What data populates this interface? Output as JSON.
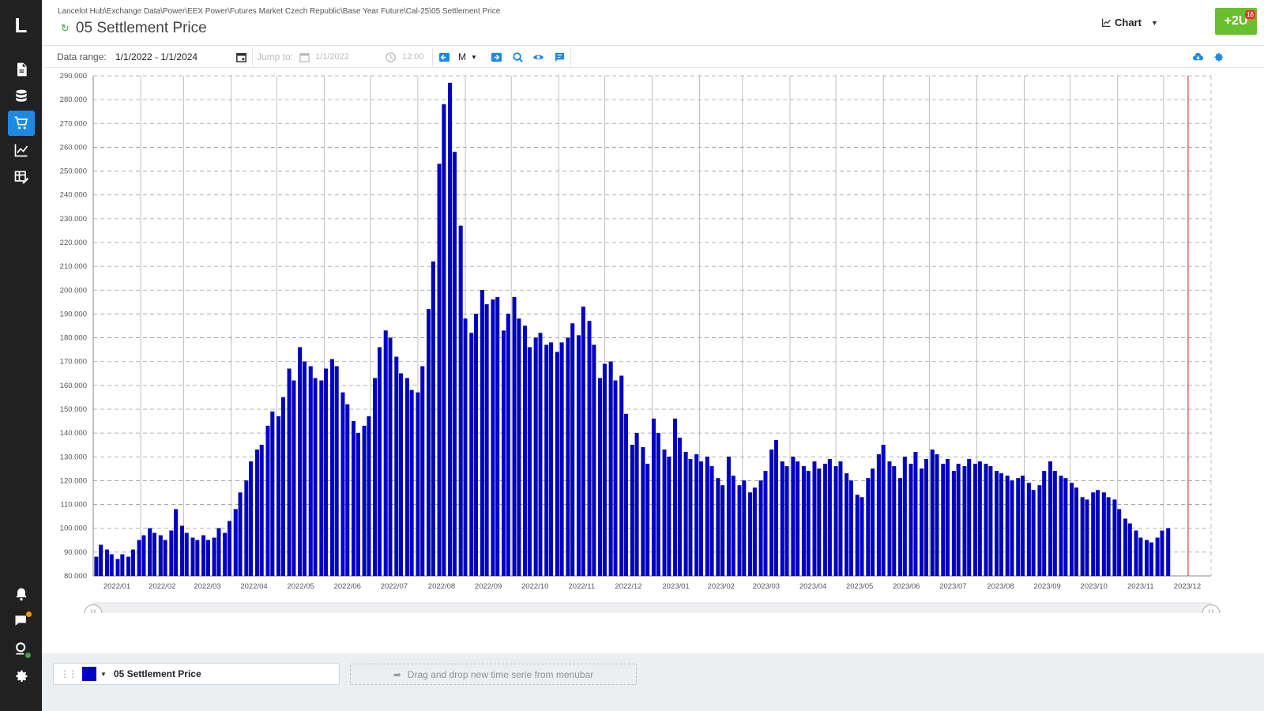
{
  "app": {
    "logo_letter": "L"
  },
  "nav": {
    "items": [
      {
        "icon": "document-icon"
      },
      {
        "icon": "database-icon"
      },
      {
        "icon": "cart-icon",
        "active": true
      },
      {
        "icon": "line-chart-icon"
      },
      {
        "icon": "table-edit-icon"
      }
    ],
    "bottom_items": [
      {
        "icon": "bell-icon"
      },
      {
        "icon": "feedback-icon",
        "badge_color": "#ff9800"
      },
      {
        "icon": "user-status-icon",
        "badge_color": "#43a047"
      },
      {
        "icon": "settings-icon"
      }
    ]
  },
  "header": {
    "breadcrumb": "Lancelot Hub\\Exchange Data\\Power\\EEX Power\\Futures Market Czech Republic\\Base Year Future\\Cal-25\\05 Settlement Price",
    "title": "05 Settlement Price",
    "view_mode": "Chart",
    "action_button": "+2U",
    "action_badge": "16",
    "accent": "#6abf2e"
  },
  "toolbar": {
    "data_range_label": "Data range:",
    "data_range_value": "1/1/2022 - 1/1/2024",
    "jump_to_label": "Jump to:",
    "jump_date_placeholder": "1/1/2022",
    "jump_time_placeholder": "12:00",
    "period": "M",
    "accent": "#1e88e5"
  },
  "chart_data": {
    "type": "bar",
    "title": "",
    "xlabel": "",
    "ylabel": "",
    "series": [
      {
        "name": "05 Settlement Price",
        "color": "#0000c8"
      }
    ],
    "x_range": [
      "2022-01-01",
      "2024-01-01"
    ],
    "ylim": [
      80,
      290
    ],
    "y_ticks": [
      "80.000",
      "90.000",
      "100.000",
      "110.000",
      "120.000",
      "130.000",
      "140.000",
      "150.000",
      "160.000",
      "170.000",
      "180.000",
      "190.000",
      "200.000",
      "210.000",
      "220.000",
      "230.000",
      "240.000",
      "250.000",
      "260.000",
      "270.000",
      "280.000",
      "290.000"
    ],
    "x_ticks": [
      "2022/01",
      "2022/02",
      "2022/03",
      "2022/04",
      "2022/05",
      "2022/06",
      "2022/07",
      "2022/08",
      "2022/09",
      "2022/10",
      "2022/11",
      "2022/12",
      "2023/01",
      "2023/02",
      "2023/03",
      "2023/04",
      "2023/05",
      "2023/06",
      "2023/07",
      "2023/08",
      "2023/09",
      "2023/10",
      "2023/11",
      "2023/12"
    ],
    "grid": true,
    "marker_line_color": "#e53935",
    "points": [
      [
        "2022-01-03",
        88
      ],
      [
        "2022-01-06",
        93
      ],
      [
        "2022-01-10",
        91
      ],
      [
        "2022-01-13",
        89
      ],
      [
        "2022-01-17",
        87
      ],
      [
        "2022-01-20",
        89
      ],
      [
        "2022-01-24",
        88
      ],
      [
        "2022-01-27",
        91
      ],
      [
        "2022-01-31",
        95
      ],
      [
        "2022-02-03",
        97
      ],
      [
        "2022-02-07",
        100
      ],
      [
        "2022-02-10",
        98
      ],
      [
        "2022-02-14",
        97
      ],
      [
        "2022-02-17",
        95
      ],
      [
        "2022-02-21",
        99
      ],
      [
        "2022-02-24",
        108
      ],
      [
        "2022-02-28",
        101
      ],
      [
        "2022-03-03",
        98
      ],
      [
        "2022-03-07",
        96
      ],
      [
        "2022-03-10",
        95
      ],
      [
        "2022-03-14",
        97
      ],
      [
        "2022-03-17",
        95
      ],
      [
        "2022-03-21",
        96
      ],
      [
        "2022-03-24",
        100
      ],
      [
        "2022-03-28",
        98
      ],
      [
        "2022-03-31",
        103
      ],
      [
        "2022-04-04",
        108
      ],
      [
        "2022-04-07",
        115
      ],
      [
        "2022-04-11",
        120
      ],
      [
        "2022-04-14",
        128
      ],
      [
        "2022-04-18",
        133
      ],
      [
        "2022-04-21",
        135
      ],
      [
        "2022-04-25",
        143
      ],
      [
        "2022-04-28",
        149
      ],
      [
        "2022-05-02",
        147
      ],
      [
        "2022-05-05",
        155
      ],
      [
        "2022-05-09",
        167
      ],
      [
        "2022-05-12",
        162
      ],
      [
        "2022-05-16",
        176
      ],
      [
        "2022-05-19",
        170
      ],
      [
        "2022-05-23",
        168
      ],
      [
        "2022-05-26",
        163
      ],
      [
        "2022-05-30",
        162
      ],
      [
        "2022-06-02",
        167
      ],
      [
        "2022-06-06",
        171
      ],
      [
        "2022-06-09",
        168
      ],
      [
        "2022-06-13",
        157
      ],
      [
        "2022-06-16",
        152
      ],
      [
        "2022-06-20",
        145
      ],
      [
        "2022-06-23",
        140
      ],
      [
        "2022-06-27",
        143
      ],
      [
        "2022-06-30",
        147
      ],
      [
        "2022-07-04",
        163
      ],
      [
        "2022-07-07",
        176
      ],
      [
        "2022-07-11",
        183
      ],
      [
        "2022-07-14",
        180
      ],
      [
        "2022-07-18",
        172
      ],
      [
        "2022-07-21",
        165
      ],
      [
        "2022-07-25",
        163
      ],
      [
        "2022-07-28",
        158
      ],
      [
        "2022-08-01",
        157
      ],
      [
        "2022-08-04",
        168
      ],
      [
        "2022-08-08",
        192
      ],
      [
        "2022-08-11",
        212
      ],
      [
        "2022-08-15",
        253
      ],
      [
        "2022-08-18",
        278
      ],
      [
        "2022-08-22",
        287
      ],
      [
        "2022-08-25",
        258
      ],
      [
        "2022-08-29",
        227
      ],
      [
        "2022-09-01",
        188
      ],
      [
        "2022-09-05",
        182
      ],
      [
        "2022-09-08",
        190
      ],
      [
        "2022-09-12",
        200
      ],
      [
        "2022-09-15",
        194
      ],
      [
        "2022-09-19",
        196
      ],
      [
        "2022-09-22",
        197
      ],
      [
        "2022-09-26",
        183
      ],
      [
        "2022-09-29",
        190
      ],
      [
        "2022-10-03",
        197
      ],
      [
        "2022-10-06",
        188
      ],
      [
        "2022-10-10",
        185
      ],
      [
        "2022-10-13",
        176
      ],
      [
        "2022-10-17",
        180
      ],
      [
        "2022-10-20",
        182
      ],
      [
        "2022-10-24",
        177
      ],
      [
        "2022-10-27",
        178
      ],
      [
        "2022-10-31",
        174
      ],
      [
        "2022-11-03",
        178
      ],
      [
        "2022-11-07",
        180
      ],
      [
        "2022-11-10",
        186
      ],
      [
        "2022-11-14",
        181
      ],
      [
        "2022-11-17",
        193
      ],
      [
        "2022-11-21",
        187
      ],
      [
        "2022-11-24",
        177
      ],
      [
        "2022-11-28",
        163
      ],
      [
        "2022-12-01",
        169
      ],
      [
        "2022-12-05",
        170
      ],
      [
        "2022-12-08",
        162
      ],
      [
        "2022-12-12",
        164
      ],
      [
        "2022-12-15",
        148
      ],
      [
        "2022-12-19",
        135
      ],
      [
        "2022-12-22",
        140
      ],
      [
        "2022-12-26",
        134
      ],
      [
        "2022-12-29",
        127
      ],
      [
        "2023-01-02",
        146
      ],
      [
        "2023-01-05",
        140
      ],
      [
        "2023-01-09",
        133
      ],
      [
        "2023-01-12",
        130
      ],
      [
        "2023-01-16",
        146
      ],
      [
        "2023-01-19",
        138
      ],
      [
        "2023-01-23",
        132
      ],
      [
        "2023-01-26",
        129
      ],
      [
        "2023-01-30",
        131
      ],
      [
        "2023-02-02",
        128
      ],
      [
        "2023-02-06",
        130
      ],
      [
        "2023-02-09",
        126
      ],
      [
        "2023-02-13",
        121
      ],
      [
        "2023-02-16",
        118
      ],
      [
        "2023-02-20",
        130
      ],
      [
        "2023-02-23",
        122
      ],
      [
        "2023-02-27",
        118
      ],
      [
        "2023-03-02",
        120
      ],
      [
        "2023-03-06",
        115
      ],
      [
        "2023-03-09",
        117
      ],
      [
        "2023-03-13",
        120
      ],
      [
        "2023-03-16",
        124
      ],
      [
        "2023-03-20",
        133
      ],
      [
        "2023-03-23",
        137
      ],
      [
        "2023-03-27",
        128
      ],
      [
        "2023-03-30",
        126
      ],
      [
        "2023-04-03",
        130
      ],
      [
        "2023-04-06",
        128
      ],
      [
        "2023-04-10",
        126
      ],
      [
        "2023-04-13",
        124
      ],
      [
        "2023-04-17",
        128
      ],
      [
        "2023-04-20",
        125
      ],
      [
        "2023-04-24",
        127
      ],
      [
        "2023-04-27",
        129
      ],
      [
        "2023-05-01",
        126
      ],
      [
        "2023-05-04",
        128
      ],
      [
        "2023-05-08",
        123
      ],
      [
        "2023-05-11",
        120
      ],
      [
        "2023-05-15",
        114
      ],
      [
        "2023-05-18",
        113
      ],
      [
        "2023-05-22",
        121
      ],
      [
        "2023-05-25",
        125
      ],
      [
        "2023-05-29",
        131
      ],
      [
        "2023-06-01",
        135
      ],
      [
        "2023-06-05",
        128
      ],
      [
        "2023-06-08",
        126
      ],
      [
        "2023-06-12",
        121
      ],
      [
        "2023-06-15",
        130
      ],
      [
        "2023-06-19",
        127
      ],
      [
        "2023-06-22",
        132
      ],
      [
        "2023-06-26",
        125
      ],
      [
        "2023-06-29",
        129
      ],
      [
        "2023-07-03",
        133
      ],
      [
        "2023-07-06",
        131
      ],
      [
        "2023-07-10",
        127
      ],
      [
        "2023-07-13",
        129
      ],
      [
        "2023-07-17",
        124
      ],
      [
        "2023-07-20",
        127
      ],
      [
        "2023-07-24",
        126
      ],
      [
        "2023-07-27",
        129
      ],
      [
        "2023-07-31",
        127
      ],
      [
        "2023-08-03",
        128
      ],
      [
        "2023-08-07",
        127
      ],
      [
        "2023-08-10",
        126
      ],
      [
        "2023-08-14",
        124
      ],
      [
        "2023-08-17",
        123
      ],
      [
        "2023-08-21",
        122
      ],
      [
        "2023-08-24",
        120
      ],
      [
        "2023-08-28",
        121
      ],
      [
        "2023-08-31",
        122
      ],
      [
        "2023-09-04",
        119
      ],
      [
        "2023-09-07",
        116
      ],
      [
        "2023-09-11",
        118
      ],
      [
        "2023-09-14",
        124
      ],
      [
        "2023-09-18",
        128
      ],
      [
        "2023-09-21",
        124
      ],
      [
        "2023-09-25",
        122
      ],
      [
        "2023-09-28",
        121
      ],
      [
        "2023-10-02",
        119
      ],
      [
        "2023-10-05",
        117
      ],
      [
        "2023-10-09",
        113
      ],
      [
        "2023-10-12",
        112
      ],
      [
        "2023-10-16",
        115
      ],
      [
        "2023-10-19",
        116
      ],
      [
        "2023-10-23",
        115
      ],
      [
        "2023-10-26",
        113
      ],
      [
        "2023-10-30",
        112
      ],
      [
        "2023-11-02",
        108
      ],
      [
        "2023-11-06",
        104
      ],
      [
        "2023-11-09",
        102
      ],
      [
        "2023-11-13",
        99
      ],
      [
        "2023-11-16",
        96
      ],
      [
        "2023-11-20",
        95
      ],
      [
        "2023-11-23",
        94
      ],
      [
        "2023-11-27",
        96
      ],
      [
        "2023-11-30",
        99
      ],
      [
        "2023-12-04",
        100
      ]
    ]
  },
  "legend_bar": {
    "series_name": "05 Settlement Price",
    "series_color": "#0000c8",
    "dropzone_text": "Drag and drop new time serie from menubar"
  }
}
